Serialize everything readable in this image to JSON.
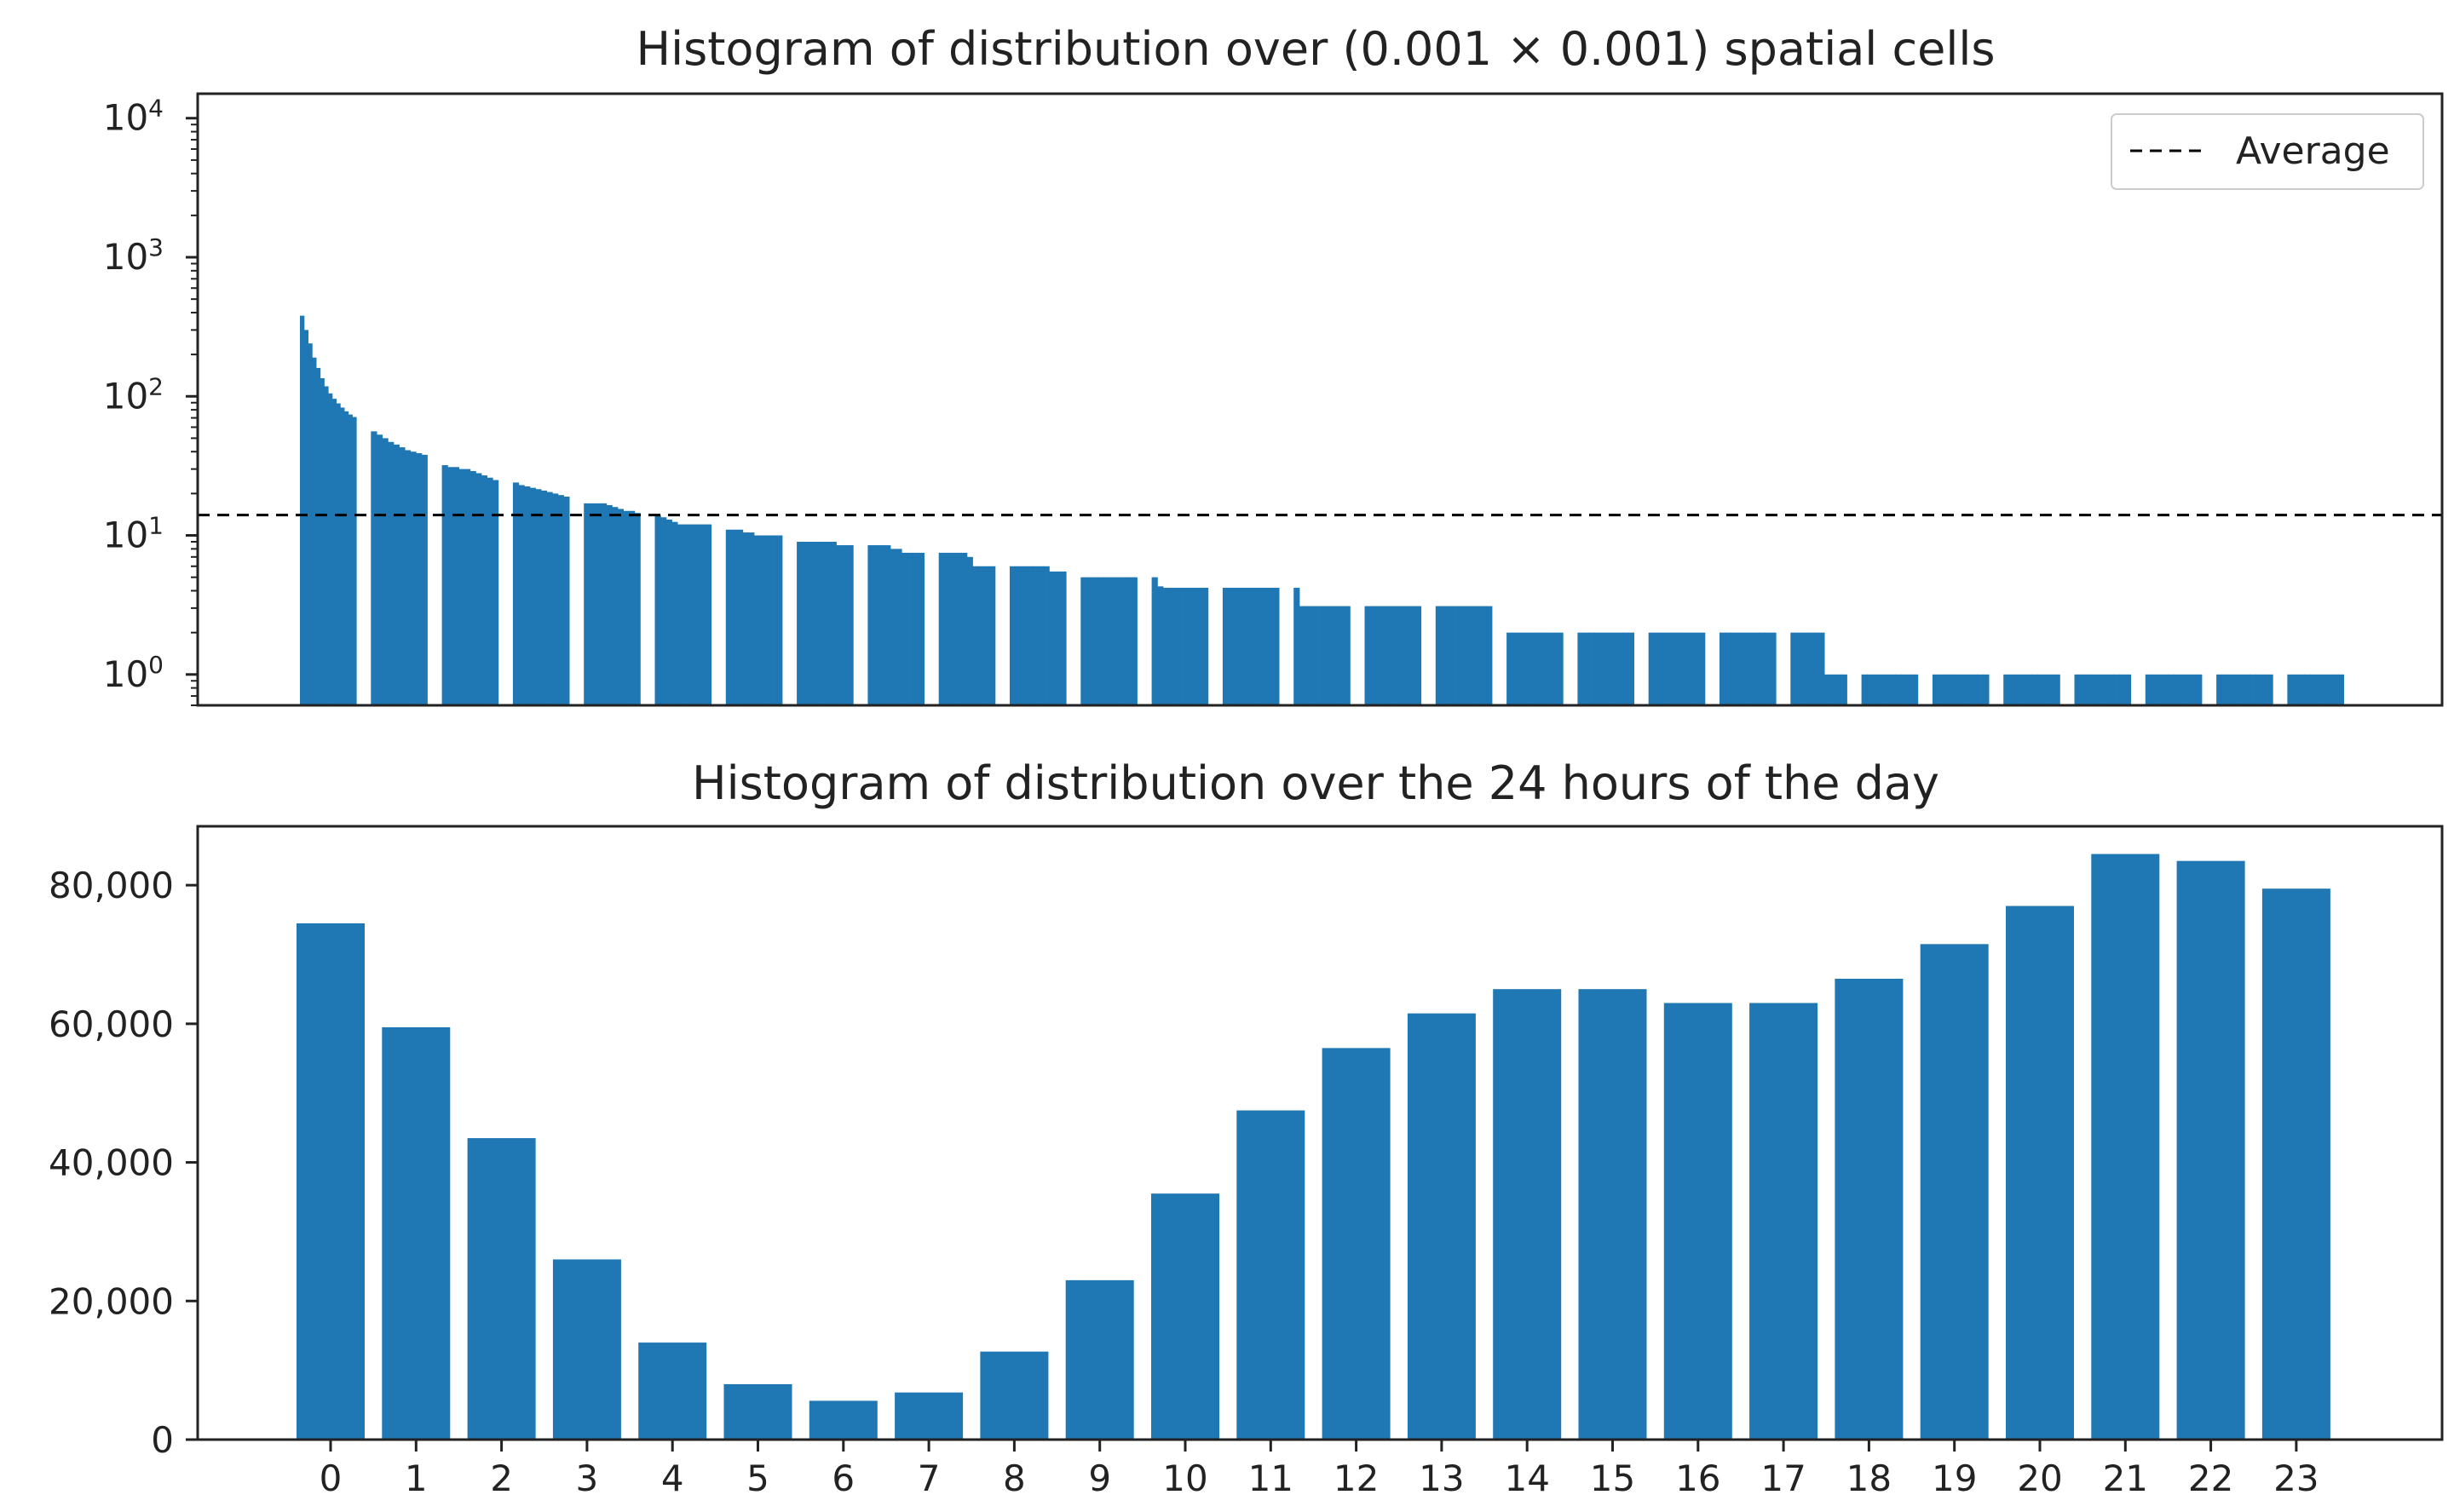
{
  "chart_data": [
    {
      "type": "bar",
      "title": "Histogram of distribution over (0.001 × 0.001) spatial cells",
      "xlabel": "",
      "ylabel": "",
      "yscale": "log",
      "ylim": [
        0.6,
        15000
      ],
      "yticks": [
        {
          "base": "10",
          "exp": "0"
        },
        {
          "base": "10",
          "exp": "1"
        },
        {
          "base": "10",
          "exp": "2"
        },
        {
          "base": "10",
          "exp": "3"
        },
        {
          "base": "10",
          "exp": "4"
        }
      ],
      "average": {
        "label": "Average",
        "value": 14
      },
      "legend_position": "top-right",
      "groups": [
        [
          380,
          300,
          240,
          190,
          160,
          135,
          118,
          105,
          96,
          89,
          83,
          78,
          74,
          71
        ],
        [
          56,
          53,
          50,
          47,
          45,
          43,
          41,
          40,
          39,
          38
        ],
        [
          32,
          31,
          31,
          30,
          30,
          29,
          28,
          27,
          26,
          25
        ],
        [
          24,
          23,
          22.5,
          22,
          21.5,
          21,
          20.5,
          20,
          19.5,
          19
        ],
        [
          17,
          17,
          17,
          17,
          16.5,
          16,
          15.5,
          15,
          15,
          14.5
        ],
        [
          14,
          13.5,
          13,
          12.5,
          12,
          12,
          12,
          12,
          12,
          12
        ],
        [
          11,
          11,
          11,
          10.5,
          10.5,
          10,
          10,
          10,
          10,
          10
        ],
        [
          9,
          9,
          9,
          9,
          9,
          9,
          9,
          8.5,
          8.5,
          8.5
        ],
        [
          8.5,
          8.5,
          8.5,
          8.5,
          8,
          8,
          7.5,
          7.5,
          7.5,
          7.5
        ],
        [
          7.5,
          7.5,
          7.5,
          7.5,
          7.5,
          7,
          6,
          6,
          6,
          6
        ],
        [
          6,
          6,
          6,
          6,
          6,
          6,
          6,
          5.5,
          5.5,
          5.5
        ],
        [
          5,
          5,
          5,
          5,
          5,
          5,
          5,
          5,
          5,
          5
        ],
        [
          5,
          4.3,
          4.2,
          4.2,
          4.2,
          4.2,
          4.2,
          4.2,
          4.2,
          4.2
        ],
        [
          4.2,
          4.2,
          4.2,
          4.2,
          4.2,
          4.2,
          4.2,
          4.2,
          4.2,
          4.2
        ],
        [
          4.2,
          3.1,
          3.1,
          3.1,
          3.1,
          3.1,
          3.1,
          3.1,
          3.1,
          3.1
        ],
        [
          3.1,
          3.1,
          3.1,
          3.1,
          3.1,
          3.1,
          3.1,
          3.1,
          3.1,
          3.1
        ],
        [
          3.1,
          3.1,
          3.1,
          3.1,
          3.1,
          3.1,
          3.1,
          3.1,
          3.1,
          3.1
        ],
        [
          2,
          2,
          2,
          2,
          2,
          2,
          2,
          2,
          2,
          2
        ],
        [
          2,
          2,
          2,
          2,
          2,
          2,
          2,
          2,
          2,
          2
        ],
        [
          2,
          2,
          2,
          2,
          2,
          2,
          2,
          2,
          2,
          2
        ],
        [
          2,
          2,
          2,
          2,
          2,
          2,
          2,
          2,
          2,
          2
        ],
        [
          2,
          2,
          2,
          2,
          2,
          2,
          1,
          1,
          1,
          1
        ],
        [
          1,
          1,
          1,
          1,
          1,
          1,
          1,
          1,
          1,
          1
        ],
        [
          1,
          1,
          1,
          1,
          1,
          1,
          1,
          1,
          1,
          1
        ],
        [
          1,
          1,
          1,
          1,
          1,
          1,
          1,
          1,
          1,
          1
        ],
        [
          1,
          1,
          1,
          1,
          1,
          1,
          1,
          1,
          1,
          1
        ],
        [
          1,
          1,
          1,
          1,
          1,
          1,
          1,
          1,
          1,
          1
        ],
        [
          1,
          1,
          1,
          1,
          1,
          1,
          1,
          1,
          1,
          1
        ],
        [
          1,
          1,
          1,
          1,
          1,
          1,
          1,
          1,
          1,
          1
        ]
      ]
    },
    {
      "type": "bar",
      "title": "Histogram of distribution over the 24 hours of the day",
      "xlabel": "",
      "ylabel": "",
      "categories": [
        "0",
        "1",
        "2",
        "3",
        "4",
        "5",
        "6",
        "7",
        "8",
        "9",
        "10",
        "11",
        "12",
        "13",
        "14",
        "15",
        "16",
        "17",
        "18",
        "19",
        "20",
        "21",
        "22",
        "23"
      ],
      "values": [
        74500,
        59500,
        43500,
        26000,
        14000,
        8000,
        5600,
        6800,
        12700,
        23000,
        35500,
        47500,
        56500,
        61500,
        65000,
        65000,
        63000,
        63000,
        66500,
        71500,
        77000,
        84500,
        83500,
        79500
      ],
      "ylim": [
        0,
        88500
      ],
      "yticks": [
        {
          "value": 0,
          "label": "0"
        },
        {
          "value": 20000,
          "label": "20,000"
        },
        {
          "value": 40000,
          "label": "40,000"
        },
        {
          "value": 60000,
          "label": "60,000"
        },
        {
          "value": 80000,
          "label": "80,000"
        }
      ]
    }
  ],
  "colors": {
    "bar": "#1f77b4",
    "axis": "#222222",
    "average_line": "#000000",
    "legend_border": "#cccccc"
  }
}
